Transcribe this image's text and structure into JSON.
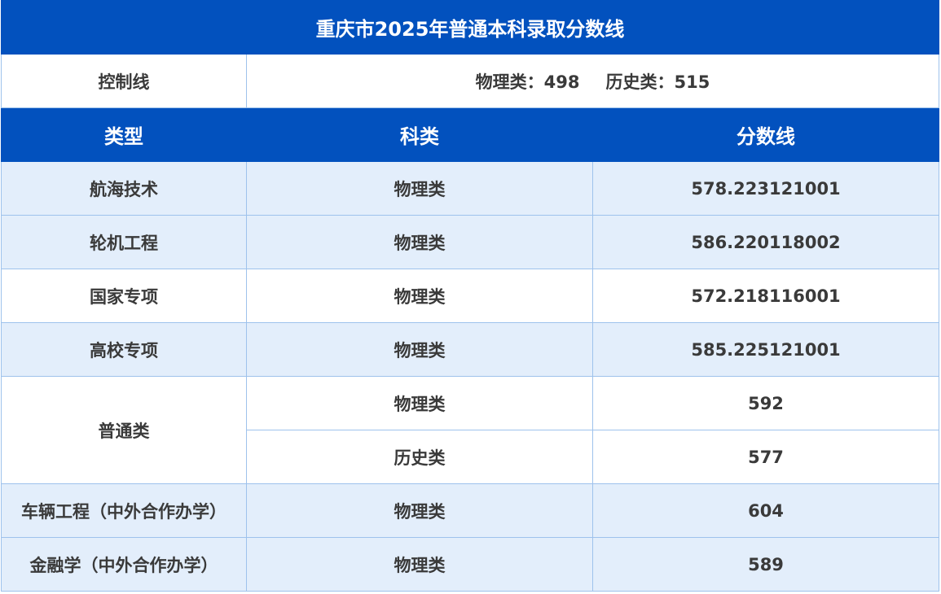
{
  "title": "重庆市2025年普通本科录取分数线",
  "control": {
    "label": "控制线",
    "physics_label": "物理类：",
    "physics_score": "498",
    "history_label": "历史类：",
    "history_score": "515"
  },
  "headers": {
    "type": "类型",
    "subject": "科类",
    "score": "分数线"
  },
  "rows": [
    {
      "type": "航海技术",
      "subject": "物理类",
      "score": "578.223121001"
    },
    {
      "type": "轮机工程",
      "subject": "物理类",
      "score": "586.220118002"
    },
    {
      "type": "国家专项",
      "subject": "物理类",
      "score": "572.218116001"
    },
    {
      "type": "高校专项",
      "subject": "物理类",
      "score": "585.225121001"
    }
  ],
  "general": {
    "type": "普通类",
    "rows": [
      {
        "subject": "物理类",
        "score": "592"
      },
      {
        "subject": "历史类",
        "score": "577"
      }
    ]
  },
  "rows_after": [
    {
      "type": "车辆工程（中外合作办学）",
      "subject": "物理类",
      "score": "604"
    },
    {
      "type": "金融学（中外合作办学）",
      "subject": "物理类",
      "score": "589"
    }
  ],
  "colors": {
    "header_blue": "#0251be",
    "row_alt": "#e3eefb",
    "border": "#9ec2ec"
  }
}
